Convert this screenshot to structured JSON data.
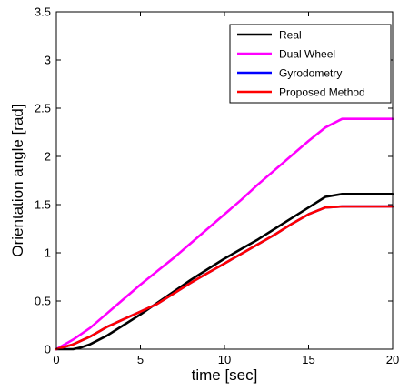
{
  "chart_data": {
    "type": "line",
    "title": "",
    "xlabel": "time [sec]",
    "ylabel": "Orientation angle [rad]",
    "xlim": [
      0,
      20
    ],
    "ylim": [
      0,
      3.5
    ],
    "xticks": [
      "0",
      "5",
      "10",
      "15",
      "20"
    ],
    "yticks": [
      "0",
      "0.5",
      "1",
      "1.5",
      "2",
      "2.5",
      "3",
      "3.5"
    ],
    "grid": false,
    "legend_position": "top-right",
    "series": [
      {
        "name": "Real",
        "color": "#000000",
        "x": [
          0,
          1,
          1.5,
          2,
          3,
          4,
          5,
          6,
          7,
          8,
          9,
          10,
          11,
          12,
          13,
          14,
          15,
          16,
          17,
          18,
          19,
          20
        ],
        "y": [
          0,
          0,
          0.02,
          0.05,
          0.14,
          0.25,
          0.36,
          0.48,
          0.6,
          0.72,
          0.83,
          0.94,
          1.04,
          1.14,
          1.25,
          1.36,
          1.47,
          1.58,
          1.61,
          1.61,
          1.61,
          1.61
        ]
      },
      {
        "name": "Dual Wheel",
        "color": "#ff00ff",
        "x": [
          0,
          1,
          2,
          3,
          4,
          5,
          6,
          7,
          8,
          9,
          10,
          11,
          12,
          13,
          14,
          15,
          16,
          17,
          18,
          19,
          20
        ],
        "y": [
          0,
          0.1,
          0.22,
          0.37,
          0.52,
          0.67,
          0.81,
          0.95,
          1.1,
          1.25,
          1.4,
          1.55,
          1.71,
          1.86,
          2.01,
          2.16,
          2.3,
          2.39,
          2.39,
          2.39,
          2.39
        ]
      },
      {
        "name": "Gyrodometry",
        "color": "#0000ff",
        "x": [
          0,
          1,
          2,
          3,
          4,
          5,
          6,
          7,
          8,
          9,
          10,
          11,
          12,
          13,
          14,
          15,
          16,
          17,
          18,
          19,
          20
        ],
        "y": [
          0,
          0.05,
          0.13,
          0.23,
          0.31,
          0.39,
          0.47,
          0.58,
          0.69,
          0.79,
          0.89,
          0.99,
          1.09,
          1.19,
          1.3,
          1.4,
          1.47,
          1.48,
          1.48,
          1.48,
          1.48
        ]
      },
      {
        "name": "Proposed Method",
        "color": "#ff0000",
        "x": [
          0,
          1,
          2,
          3,
          4,
          5,
          6,
          7,
          8,
          9,
          10,
          11,
          12,
          13,
          14,
          15,
          16,
          17,
          18,
          19,
          20
        ],
        "y": [
          0,
          0.05,
          0.13,
          0.23,
          0.31,
          0.39,
          0.47,
          0.58,
          0.69,
          0.79,
          0.89,
          0.99,
          1.09,
          1.19,
          1.3,
          1.4,
          1.47,
          1.48,
          1.48,
          1.48,
          1.48
        ]
      }
    ]
  }
}
